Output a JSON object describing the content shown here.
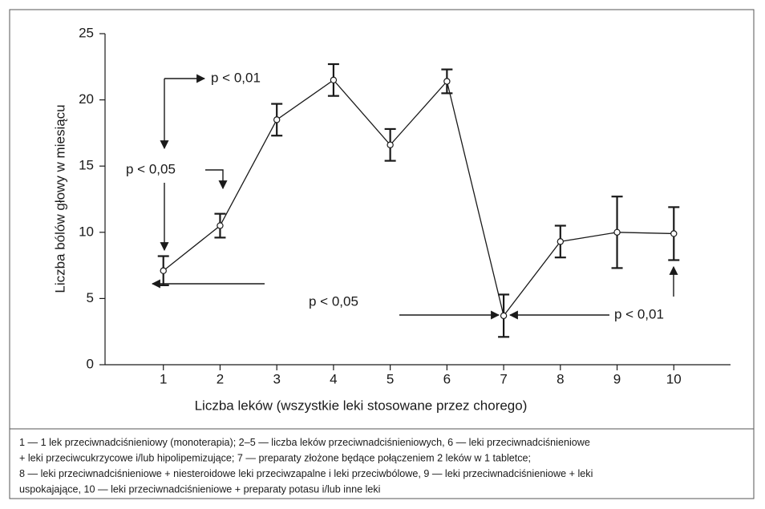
{
  "chart_data": {
    "type": "line",
    "xlabel": "Liczba leków (wszystkie leki stosowane przez chorego)",
    "ylabel": "Liczba bólów głowy w miesiącu",
    "x": [
      1,
      2,
      3,
      4,
      5,
      6,
      7,
      8,
      9,
      10
    ],
    "series": [
      {
        "color": "#1a1a1a",
        "values": [
          7.1,
          10.5,
          18.5,
          21.5,
          16.6,
          21.4,
          3.7,
          9.3,
          10.0,
          9.9
        ],
        "errors": [
          1.1,
          0.9,
          1.2,
          1.2,
          1.2,
          0.9,
          1.6,
          1.2,
          2.7,
          2.0
        ]
      }
    ],
    "xlim": [
      0,
      11
    ],
    "xticks": [
      1,
      2,
      3,
      4,
      5,
      6,
      7,
      8,
      9,
      10
    ],
    "ylim": [
      0,
      25
    ],
    "yticks": [
      0,
      5,
      10,
      15,
      20,
      25
    ],
    "grid": false,
    "annotations": [
      "p < 0,01",
      "p < 0,05",
      "p < 0,05",
      "p < 0,01"
    ],
    "notes": [
      "1 — 1 lek przeciwnadciśnieniowy (monoterapia); 2–5 — liczba leków przeciwnadciśnieniowych, 6 — leki przeciwnadciśnieniowe",
      "+ leki przeciwcukrzycowe i/lub hipolipemizujące; 7 — preparaty złożone będące połączeniem 2 leków w 1 tabletce;",
      "8 — leki przeciwnadciśnieniowe + niesteroidowe leki przeciwzapalne i leki przeciwbólowe, 9 — leki przeciwnadciśnieniowe + leki",
      "uspokajające, 10 — leki przeciwnadciśnieniowe + preparaty potasu i/lub inne leki"
    ]
  }
}
